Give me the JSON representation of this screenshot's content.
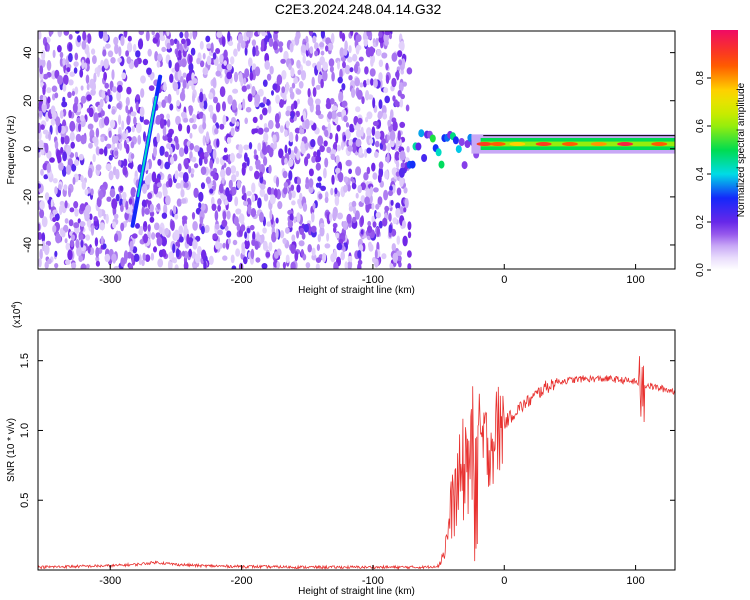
{
  "title": "C2E3.2024.248.04.14.G32",
  "chart_data": [
    {
      "type": "heatmap",
      "xlabel": "Height of straight line (km)",
      "ylabel": "Frequency (Hz)",
      "xlim": [
        -355,
        130
      ],
      "ylim": [
        -50,
        49
      ],
      "xticks": [
        -300,
        -200,
        -100,
        0,
        100
      ],
      "yticks": [
        -40,
        -20,
        0,
        20,
        40
      ],
      "colorbar": {
        "label": "Normalized spectral amplitude",
        "range": [
          0,
          1
        ],
        "ticks": [
          0.0,
          0.2,
          0.4,
          0.6,
          0.8
        ]
      },
      "features": {
        "noise_region_x": [
          -355,
          -72
        ],
        "diagonal_streak": {
          "x": [
            -283,
            -262
          ],
          "y": [
            -32,
            30
          ]
        },
        "carrier_start_x": -72,
        "carrier_frequency": 2
      }
    },
    {
      "type": "line",
      "xlabel": "Height of straight line (km)",
      "ylabel": "SNR (10 * v/v)",
      "multiplier_label": "(x10",
      "multiplier_exp": "4",
      "xlim": [
        -355,
        130
      ],
      "ylim": [
        0,
        1.72
      ],
      "xticks": [
        -300,
        -200,
        -100,
        0,
        100
      ],
      "yticks": [
        0.5,
        1.0,
        1.5
      ],
      "color": "#e8312f",
      "series": [
        {
          "x": [
            -355,
            -330,
            -300,
            -280,
            -265,
            -250,
            -230,
            -200,
            -150,
            -100,
            -60,
            -50,
            -45,
            -40,
            -35,
            -30,
            -25,
            -20,
            -15,
            -10,
            -5,
            0,
            10,
            20,
            30,
            40,
            60,
            80,
            100,
            104,
            106,
            110,
            120,
            130
          ],
          "y": [
            0.02,
            0.025,
            0.03,
            0.04,
            0.055,
            0.04,
            0.03,
            0.025,
            0.02,
            0.02,
            0.02,
            0.03,
            0.15,
            0.45,
            0.6,
            0.75,
            0.85,
            0.95,
            0.9,
            0.9,
            1.0,
            1.05,
            1.15,
            1.22,
            1.3,
            1.35,
            1.37,
            1.37,
            1.35,
            1.3,
            1.33,
            1.32,
            1.3,
            1.28
          ]
        }
      ]
    }
  ]
}
